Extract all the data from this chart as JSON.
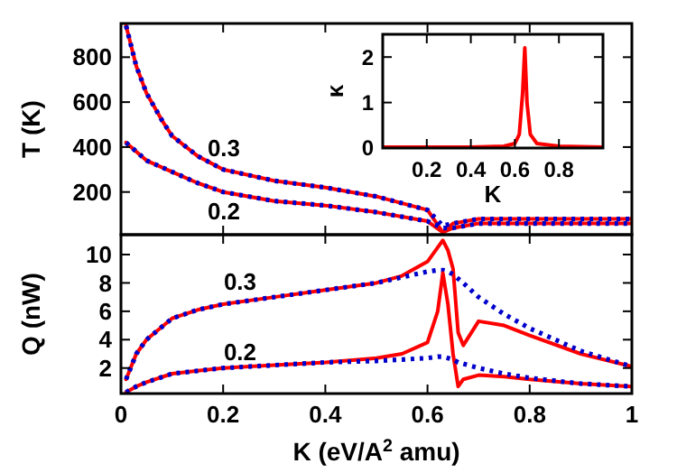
{
  "chart_data": [
    {
      "type": "line",
      "ylabel": "T (K)",
      "xlim": [
        0,
        1
      ],
      "ylim": [
        10,
        950
      ],
      "xticks": [
        0,
        0.2,
        0.4,
        0.6,
        0.8,
        1
      ],
      "yticks": [
        200,
        400,
        600,
        800
      ],
      "tick_labels": "y",
      "grid": false,
      "annotations": [
        "0.3",
        "0.2"
      ],
      "series": [
        {
          "color": "#ff0000",
          "line_style": "solid",
          "x": [
            0.01,
            0.03,
            0.05,
            0.08,
            0.1,
            0.15,
            0.2,
            0.3,
            0.4,
            0.5,
            0.6,
            0.63,
            0.65,
            0.7,
            0.8,
            0.9,
            1.0
          ],
          "values": [
            940,
            760,
            640,
            520,
            450,
            360,
            300,
            250,
            220,
            180,
            120,
            20,
            60,
            80,
            80,
            80,
            80
          ]
        },
        {
          "color": "#0000cc",
          "line_style": "dotted",
          "x": [
            0.01,
            0.03,
            0.05,
            0.08,
            0.1,
            0.15,
            0.2,
            0.3,
            0.4,
            0.5,
            0.6,
            0.63,
            0.65,
            0.7,
            0.8,
            0.9,
            1.0
          ],
          "values": [
            940,
            760,
            640,
            520,
            450,
            360,
            300,
            250,
            220,
            180,
            120,
            50,
            60,
            80,
            80,
            80,
            80
          ]
        },
        {
          "color": "#ff0000",
          "line_style": "solid",
          "x": [
            0.01,
            0.03,
            0.05,
            0.08,
            0.1,
            0.15,
            0.2,
            0.3,
            0.4,
            0.5,
            0.6,
            0.63,
            0.65,
            0.7,
            0.8,
            0.9,
            1.0
          ],
          "values": [
            420,
            380,
            340,
            310,
            290,
            240,
            200,
            160,
            140,
            110,
            70,
            20,
            40,
            60,
            60,
            60,
            60
          ]
        },
        {
          "color": "#0000cc",
          "line_style": "dotted",
          "x": [
            0.01,
            0.03,
            0.05,
            0.08,
            0.1,
            0.15,
            0.2,
            0.3,
            0.4,
            0.5,
            0.6,
            0.63,
            0.65,
            0.7,
            0.8,
            0.9,
            1.0
          ],
          "values": [
            420,
            380,
            340,
            310,
            290,
            240,
            200,
            160,
            140,
            110,
            70,
            40,
            40,
            60,
            60,
            60,
            60
          ]
        }
      ]
    },
    {
      "type": "line",
      "xlabel": "K",
      "ylabel": "κ",
      "xlim": [
        0,
        1
      ],
      "ylim": [
        0,
        2.5
      ],
      "xticks": [
        0.2,
        0.4,
        0.6,
        0.8
      ],
      "yticks": [
        0,
        1,
        2
      ],
      "grid": false,
      "series": [
        {
          "color": "#ff0000",
          "line_style": "solid",
          "x": [
            0,
            0.2,
            0.4,
            0.55,
            0.6,
            0.62,
            0.635,
            0.645,
            0.655,
            0.67,
            0.7,
            0.8,
            1.0
          ],
          "values": [
            0.02,
            0.02,
            0.02,
            0.04,
            0.1,
            0.3,
            1.2,
            2.2,
            1.0,
            0.3,
            0.1,
            0.04,
            0.02
          ]
        }
      ]
    },
    {
      "type": "line",
      "xlabel": "K (eV/A$^{2}$ amu)",
      "ylabel": "Q (nW)",
      "xlim": [
        0,
        1
      ],
      "ylim": [
        0.2,
        11.4
      ],
      "xticks": [
        0,
        0.2,
        0.4,
        0.6,
        0.8,
        1
      ],
      "yticks": [
        2,
        4,
        6,
        8,
        10
      ],
      "grid": false,
      "annotations": [
        "0.3",
        "0.2"
      ],
      "series": [
        {
          "color": "#ff0000",
          "line_style": "solid",
          "x": [
            0.01,
            0.03,
            0.05,
            0.1,
            0.15,
            0.2,
            0.3,
            0.4,
            0.5,
            0.55,
            0.6,
            0.62,
            0.63,
            0.64,
            0.65,
            0.66,
            0.67,
            0.7,
            0.75,
            0.8,
            0.9,
            1.0
          ],
          "values": [
            1.2,
            3,
            4,
            5.5,
            6.1,
            6.5,
            7,
            7.5,
            8,
            8.5,
            9.5,
            10.5,
            11,
            10.3,
            9,
            4.5,
            3.6,
            5.3,
            5,
            4.3,
            3,
            2.1
          ]
        },
        {
          "color": "#0000cc",
          "line_style": "dotted",
          "x": [
            0.01,
            0.03,
            0.05,
            0.1,
            0.15,
            0.2,
            0.3,
            0.4,
            0.5,
            0.55,
            0.6,
            0.62,
            0.63,
            0.64,
            0.65,
            0.66,
            0.67,
            0.7,
            0.75,
            0.8,
            0.9,
            1.0
          ],
          "values": [
            1.2,
            3,
            4,
            5.5,
            6.1,
            6.5,
            7,
            7.5,
            8,
            8.4,
            8.8,
            8.9,
            8.9,
            8.8,
            8.6,
            8.3,
            8,
            7,
            5.8,
            4.8,
            3.2,
            2.1
          ]
        },
        {
          "color": "#ff0000",
          "line_style": "solid",
          "x": [
            0.01,
            0.03,
            0.05,
            0.1,
            0.15,
            0.2,
            0.3,
            0.4,
            0.5,
            0.55,
            0.6,
            0.62,
            0.63,
            0.64,
            0.65,
            0.66,
            0.67,
            0.7,
            0.75,
            0.8,
            0.9,
            1.0
          ],
          "values": [
            0.3,
            0.7,
            1.0,
            1.6,
            1.8,
            2.0,
            2.2,
            2.4,
            2.7,
            3.0,
            3.8,
            6,
            8.7,
            6.5,
            3,
            0.7,
            1.2,
            1.5,
            1.4,
            1.2,
            0.9,
            0.7
          ]
        },
        {
          "color": "#0000cc",
          "line_style": "dotted",
          "x": [
            0.01,
            0.03,
            0.05,
            0.1,
            0.15,
            0.2,
            0.3,
            0.4,
            0.5,
            0.55,
            0.6,
            0.62,
            0.63,
            0.64,
            0.65,
            0.66,
            0.67,
            0.7,
            0.75,
            0.8,
            0.9,
            1.0
          ],
          "values": [
            0.3,
            0.7,
            1.0,
            1.6,
            1.8,
            2.0,
            2.2,
            2.4,
            2.5,
            2.6,
            2.7,
            2.8,
            2.8,
            2.7,
            2.6,
            2.4,
            2.3,
            2.0,
            1.6,
            1.3,
            0.9,
            0.7
          ]
        }
      ]
    }
  ]
}
